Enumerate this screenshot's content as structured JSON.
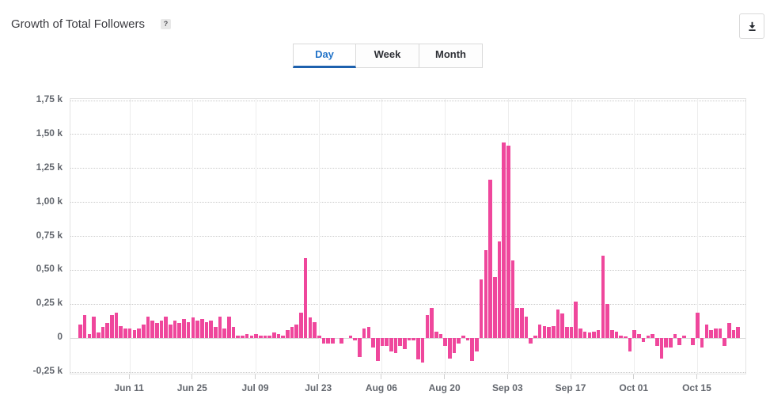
{
  "header": {
    "title": "Growth of Total Followers",
    "help_badge": "?"
  },
  "toolbar": {
    "download_icon": "download-icon"
  },
  "tabs": [
    {
      "label": "Day",
      "active": true
    },
    {
      "label": "Week",
      "active": false
    },
    {
      "label": "Month",
      "active": false
    }
  ],
  "chart_data": {
    "type": "bar",
    "title": "Growth of Total Followers",
    "unit": "k followers (thousands)",
    "bar_color": "#ef479c",
    "grid": true,
    "ylim": [
      -0.25,
      1.75
    ],
    "y_ticks": [
      {
        "label": "1,75 k",
        "value": 1.75
      },
      {
        "label": "1,50 k",
        "value": 1.5
      },
      {
        "label": "1,25 k",
        "value": 1.25
      },
      {
        "label": "1,00 k",
        "value": 1.0
      },
      {
        "label": "0,75 k",
        "value": 0.75
      },
      {
        "label": "0,50 k",
        "value": 0.5
      },
      {
        "label": "0,25 k",
        "value": 0.25
      },
      {
        "label": "0",
        "value": 0
      },
      {
        "label": "-0,25 k",
        "value": -0.25
      }
    ],
    "x_start_date": "May 31",
    "x_ticks": [
      {
        "label": "Jun 11",
        "day_index": 11
      },
      {
        "label": "Jun 25",
        "day_index": 25
      },
      {
        "label": "Jul 09",
        "day_index": 39
      },
      {
        "label": "Jul 23",
        "day_index": 53
      },
      {
        "label": "Aug 06",
        "day_index": 67
      },
      {
        "label": "Aug 20",
        "day_index": 81
      },
      {
        "label": "Sep 03",
        "day_index": 95
      },
      {
        "label": "Sep 17",
        "day_index": 109
      },
      {
        "label": "Oct 01",
        "day_index": 123
      },
      {
        "label": "Oct 15",
        "day_index": 137
      }
    ],
    "values": [
      0.1,
      0.17,
      0.03,
      0.16,
      0.04,
      0.08,
      0.11,
      0.17,
      0.19,
      0.09,
      0.07,
      0.07,
      0.06,
      0.07,
      0.1,
      0.16,
      0.13,
      0.11,
      0.13,
      0.16,
      0.1,
      0.13,
      0.11,
      0.14,
      0.12,
      0.15,
      0.13,
      0.14,
      0.12,
      0.13,
      0.08,
      0.16,
      0.07,
      0.16,
      0.08,
      0.02,
      0.02,
      0.03,
      0.02,
      0.03,
      0.02,
      0.02,
      0.02,
      0.04,
      0.03,
      0.02,
      0.06,
      0.08,
      0.1,
      0.19,
      0.59,
      0.15,
      0.12,
      0.02,
      -0.04,
      -0.04,
      -0.04,
      0,
      -0.04,
      0,
      0.02,
      -0.02,
      -0.14,
      0.07,
      0.08,
      -0.07,
      -0.17,
      -0.06,
      -0.06,
      -0.1,
      -0.11,
      -0.06,
      -0.08,
      -0.02,
      -0.02,
      -0.16,
      -0.18,
      0.17,
      0.22,
      0.05,
      0.03,
      -0.06,
      -0.15,
      -0.11,
      -0.04,
      0.02,
      -0.02,
      -0.17,
      -0.1,
      0.43,
      0.65,
      1.17,
      0.45,
      0.71,
      1.44,
      1.42,
      0.57,
      0.22,
      0.22,
      0.16,
      -0.04,
      0.02,
      0.1,
      0.09,
      0.08,
      0.09,
      0.21,
      0.18,
      0.08,
      0.08,
      0.27,
      0.07,
      0.05,
      0.04,
      0.05,
      0.06,
      0.61,
      0.25,
      0.06,
      0.05,
      0.02,
      0.01,
      -0.1,
      0.06,
      0.03,
      -0.03,
      0.02,
      0.03,
      -0.06,
      -0.15,
      -0.07,
      -0.07,
      0.03,
      -0.05,
      0.02,
      0,
      -0.05,
      0.19,
      -0.07,
      0.1,
      0.06,
      0.07,
      0.07,
      -0.06,
      0.11,
      0.06,
      0.08
    ]
  }
}
